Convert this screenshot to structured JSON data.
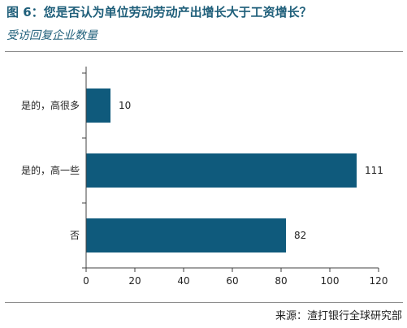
{
  "header": {
    "title": "图 6：您是否认为单位劳动劳动产出增长大于工资增长？",
    "subtitle": "受访回复企业数量"
  },
  "footer": {
    "source": "来源：渣打银行全球研究部"
  },
  "colors": {
    "bar": "#0f5a7c",
    "title": "#1f5f7a",
    "axis": "#404040"
  },
  "chart_data": {
    "type": "bar",
    "orientation": "horizontal",
    "categories": [
      "是的，高很多",
      "是的，高一些",
      "否"
    ],
    "values": [
      10,
      111,
      82
    ],
    "data_labels": [
      "10",
      "111",
      "82"
    ],
    "xlim": [
      0,
      120
    ],
    "x_ticks": [
      0,
      20,
      40,
      60,
      80,
      100,
      120
    ],
    "grid": false,
    "legend": "none"
  }
}
